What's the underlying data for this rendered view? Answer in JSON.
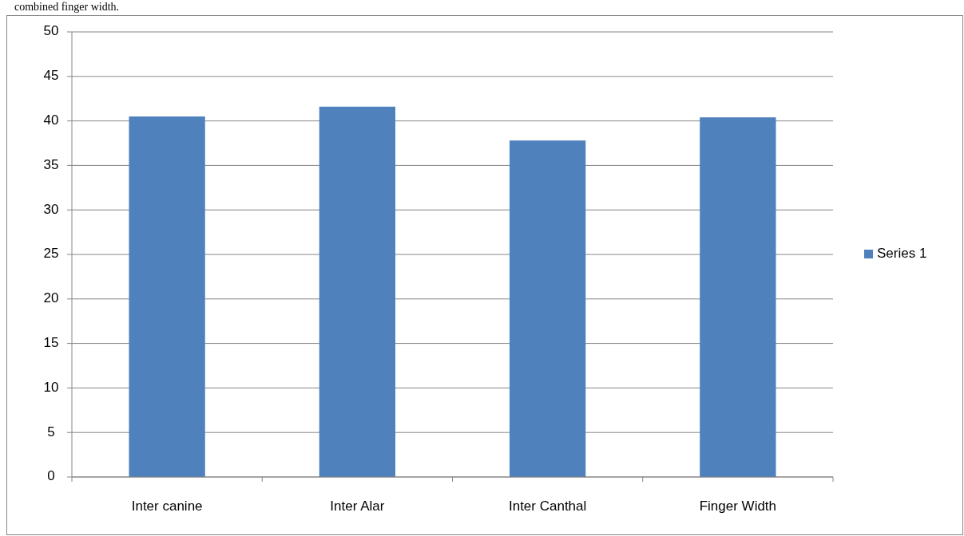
{
  "chart_data": {
    "type": "bar",
    "annotations": [
      "combined finger width."
    ],
    "categories": [
      "Inter canine",
      "Inter Alar",
      "Inter Canthal",
      "Finger Width"
    ],
    "series": [
      {
        "name": "Series 1",
        "color": "#4f81bd",
        "values": [
          40.5,
          41.6,
          37.8,
          40.4
        ]
      }
    ],
    "ylim": [
      0,
      50
    ],
    "yticks": [
      0,
      5,
      10,
      15,
      20,
      25,
      30,
      35,
      40,
      45,
      50
    ],
    "grid": "y",
    "legend": "right"
  }
}
